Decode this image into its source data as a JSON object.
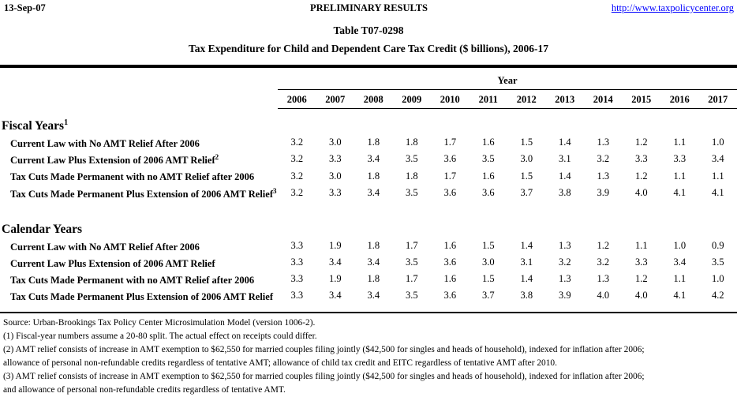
{
  "header": {
    "date": "13-Sep-07",
    "center_label": "PRELIMINARY RESULTS",
    "link": "http://www.taxpolicycenter.org"
  },
  "title": {
    "line1": "Table T07-0298",
    "line2": "Tax Expenditure for Child and Dependent Care Tax Credit ($ billions), 2006-17"
  },
  "table": {
    "year_group_label": "Year",
    "years": [
      "2006",
      "2007",
      "2008",
      "2009",
      "2010",
      "2011",
      "2012",
      "2013",
      "2014",
      "2015",
      "2016",
      "2017"
    ],
    "sections": [
      {
        "heading": "Fiscal Years",
        "heading_sup": "1",
        "rows": [
          {
            "label": "Current Law with No AMT Relief After 2006",
            "sup": "",
            "values": [
              "3.2",
              "3.0",
              "1.8",
              "1.8",
              "1.7",
              "1.6",
              "1.5",
              "1.4",
              "1.3",
              "1.2",
              "1.1",
              "1.0"
            ]
          },
          {
            "label": "Current Law Plus Extension of 2006 AMT Relief",
            "sup": "2",
            "values": [
              "3.2",
              "3.3",
              "3.4",
              "3.5",
              "3.6",
              "3.5",
              "3.0",
              "3.1",
              "3.2",
              "3.3",
              "3.3",
              "3.4"
            ]
          },
          {
            "label": "Tax Cuts Made Permanent with no AMT Relief after 2006",
            "sup": "",
            "values": [
              "3.2",
              "3.0",
              "1.8",
              "1.8",
              "1.7",
              "1.6",
              "1.5",
              "1.4",
              "1.3",
              "1.2",
              "1.1",
              "1.1"
            ]
          },
          {
            "label": "Tax Cuts Made Permanent Plus Extension of 2006 AMT Relief",
            "sup": "3",
            "values": [
              "3.2",
              "3.3",
              "3.4",
              "3.5",
              "3.6",
              "3.6",
              "3.7",
              "3.8",
              "3.9",
              "4.0",
              "4.1",
              "4.1"
            ]
          }
        ]
      },
      {
        "heading": "Calendar Years",
        "heading_sup": "",
        "rows": [
          {
            "label": "Current Law with No AMT Relief After 2006",
            "sup": "",
            "values": [
              "3.3",
              "1.9",
              "1.8",
              "1.7",
              "1.6",
              "1.5",
              "1.4",
              "1.3",
              "1.2",
              "1.1",
              "1.0",
              "0.9"
            ]
          },
          {
            "label": "Current Law Plus Extension of 2006 AMT Relief",
            "sup": "",
            "values": [
              "3.3",
              "3.4",
              "3.4",
              "3.5",
              "3.6",
              "3.0",
              "3.1",
              "3.2",
              "3.2",
              "3.3",
              "3.4",
              "3.5"
            ]
          },
          {
            "label": "Tax Cuts Made Permanent with no AMT Relief after 2006",
            "sup": "",
            "values": [
              "3.3",
              "1.9",
              "1.8",
              "1.7",
              "1.6",
              "1.5",
              "1.4",
              "1.3",
              "1.3",
              "1.2",
              "1.1",
              "1.0"
            ]
          },
          {
            "label": "Tax Cuts Made Permanent Plus Extension of 2006 AMT Relief",
            "sup": "",
            "values": [
              "3.3",
              "3.4",
              "3.4",
              "3.5",
              "3.6",
              "3.7",
              "3.8",
              "3.9",
              "4.0",
              "4.0",
              "4.1",
              "4.2"
            ]
          }
        ]
      }
    ]
  },
  "footnotes": [
    "Source: Urban-Brookings Tax Policy Center Microsimulation Model (version 1006-2).",
    "(1) Fiscal-year numbers assume a 20-80 split. The actual effect on receipts could differ.",
    "(2) AMT relief consists of increase in AMT exemption to $62,550 for married couples filing jointly ($42,500 for singles and heads of household), indexed for inflation after 2006;",
    "allowance of personal non-refundable credits regardless of tentative AMT; allowance of child tax credit and EITC regardless of tentative AMT after 2010.",
    "(3) AMT relief consists of increase in AMT exemption to $62,550 for married couples filing jointly ($42,500 for singles and heads of household), indexed for inflation after 2006;",
    "and allowance of personal non-refundable credits regardless of tentative AMT."
  ],
  "colors": {
    "link": "#0000ff",
    "text": "#000000",
    "background": "#ffffff"
  }
}
